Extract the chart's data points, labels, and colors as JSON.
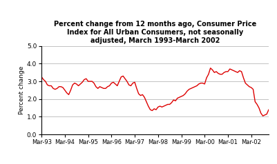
{
  "title": "Percent change from 12 months ago, Consumer Price\nIndex for All Urban Consumers, not seasonally\nadjusted, March 1993-March 2002",
  "ylabel": "Percent change",
  "ylim": [
    0.0,
    5.0
  ],
  "yticks": [
    0.0,
    1.0,
    2.0,
    3.0,
    4.0,
    5.0
  ],
  "line_color": "#dd0000",
  "line_width": 1.0,
  "background_color": "#ffffff",
  "grid_color": "#aaaaaa",
  "xtick_labels": [
    "Mar-93",
    "Mar-94",
    "Mar-95",
    "Mar-96",
    "Mar-97",
    "Mar-98",
    "Mar-99",
    "Mar-00",
    "Mar-01",
    "Mar-02"
  ],
  "values": [
    3.25,
    3.1,
    3.0,
    2.8,
    2.75,
    2.75,
    2.6,
    2.55,
    2.6,
    2.7,
    2.7,
    2.65,
    2.5,
    2.35,
    2.25,
    2.5,
    2.8,
    2.9,
    2.85,
    2.75,
    2.85,
    2.95,
    3.1,
    3.15,
    3.0,
    3.0,
    3.0,
    2.9,
    2.7,
    2.6,
    2.7,
    2.65,
    2.6,
    2.6,
    2.7,
    2.75,
    2.9,
    2.95,
    2.85,
    2.75,
    3.0,
    3.25,
    3.3,
    3.15,
    3.0,
    2.8,
    2.75,
    2.9,
    2.95,
    2.6,
    2.3,
    2.2,
    2.25,
    2.1,
    1.85,
    1.6,
    1.4,
    1.35,
    1.45,
    1.4,
    1.55,
    1.6,
    1.55,
    1.6,
    1.65,
    1.7,
    1.7,
    1.8,
    1.95,
    1.9,
    2.05,
    2.1,
    2.15,
    2.2,
    2.3,
    2.45,
    2.55,
    2.6,
    2.65,
    2.7,
    2.75,
    2.85,
    2.9,
    2.9,
    2.85,
    3.2,
    3.4,
    3.75,
    3.65,
    3.5,
    3.55,
    3.45,
    3.4,
    3.4,
    3.5,
    3.55,
    3.55,
    3.7,
    3.65,
    3.6,
    3.55,
    3.5,
    3.6,
    3.55,
    3.2,
    2.9,
    2.8,
    2.7,
    2.65,
    2.55,
    1.85,
    1.7,
    1.5,
    1.2,
    1.05,
    1.1,
    1.15,
    1.4
  ]
}
